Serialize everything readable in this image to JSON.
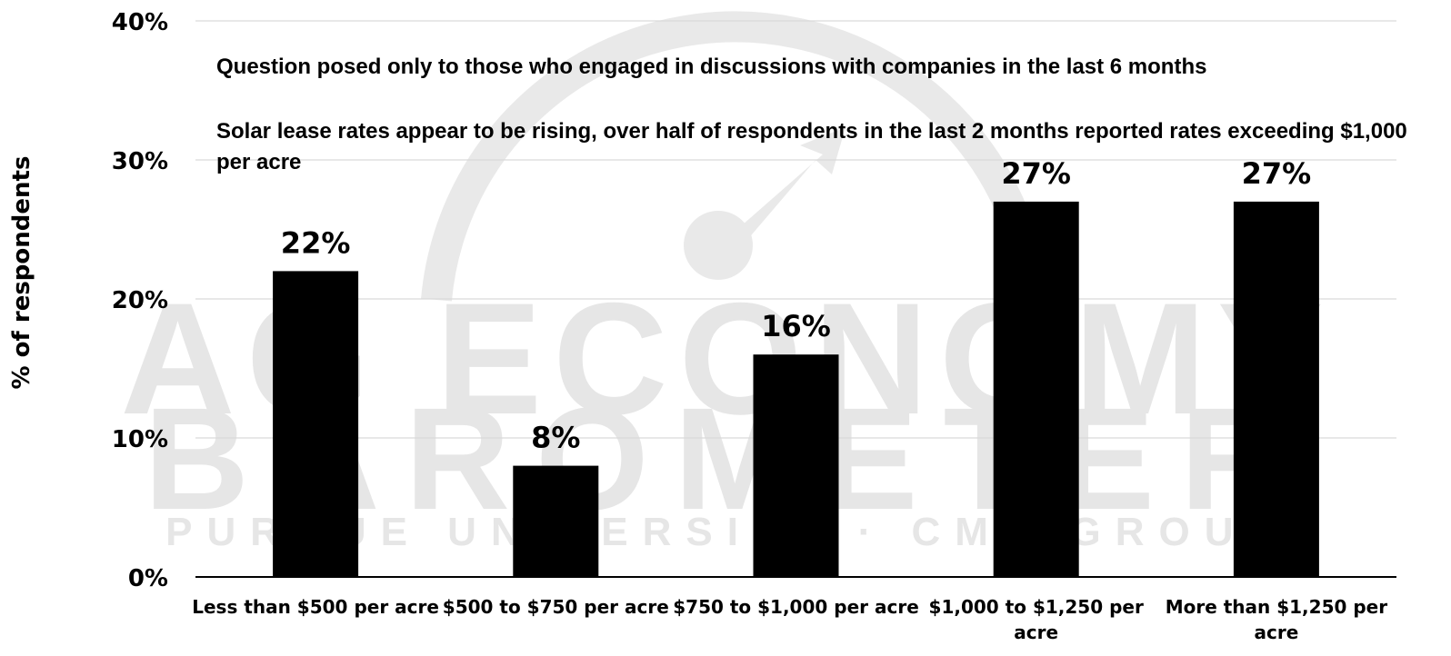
{
  "chart_data": {
    "type": "bar",
    "categories": [
      "Less than $500 per acre",
      "$500 to $750 per acre",
      "$750 to $1,000 per acre",
      "$1,000 to $1,250 per acre",
      "More than $1,250 per acre"
    ],
    "values": [
      22,
      8,
      16,
      27,
      27
    ],
    "data_labels": [
      "22%",
      "8%",
      "16%",
      "27%",
      "27%"
    ],
    "ylabel": "% of respondents",
    "ylim": [
      0,
      40
    ],
    "yticks": [
      0,
      10,
      20,
      30,
      40
    ],
    "ytick_labels": [
      "0%",
      "10%",
      "20%",
      "30%",
      "40%"
    ],
    "grid": "horizontal",
    "annotations": [
      "Question posed only to those who engaged  in discussions with companies in the last 6 months",
      "Solar lease rates appear to be rising, over half of respondents in the last 2 months reported rates exceeding $1,000 per acre"
    ],
    "bar_color": "#000000"
  },
  "watermark": {
    "line1": "AG ECONOMY",
    "line2": "BAROMETER",
    "line3": "PURDUE UNIVERSITY · CME GROUP",
    "color": "#e6e6e6"
  }
}
